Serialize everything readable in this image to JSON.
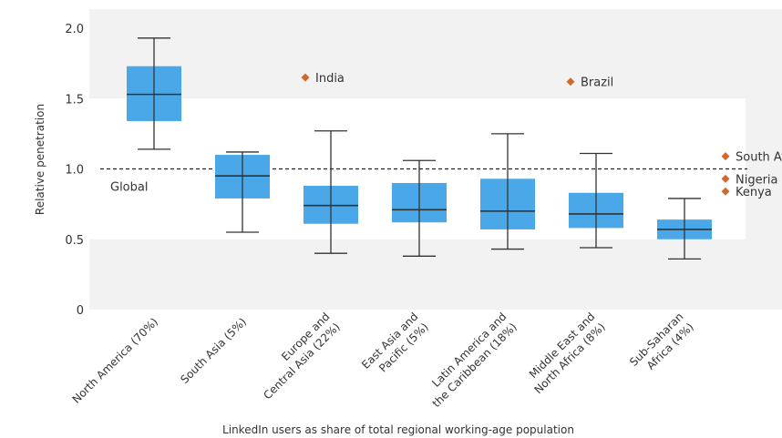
{
  "chart_data": {
    "type": "box",
    "xlabel": "LinkedIn users as share of total regional working-age population",
    "ylabel": "Relative penetration",
    "ylim": [
      0,
      2.0
    ],
    "yticks": [
      "0",
      "0.5",
      "1.0",
      "1.5",
      "2.0"
    ],
    "y_tick_values": [
      0,
      0.5,
      1.0,
      1.5,
      2.0
    ],
    "categories": [
      [
        "North America (70%)"
      ],
      [
        "South Asia (5%)"
      ],
      [
        "Europe and",
        "Central Asia (22%)"
      ],
      [
        "East Asia and",
        "Pacific (5%)"
      ],
      [
        "Latin America and",
        "the Caribbean (18%)"
      ],
      [
        "Middle East and",
        "North Africa (8%)"
      ],
      [
        "Sub-Saharan",
        "Africa (4%)"
      ]
    ],
    "boxes": [
      {
        "min": 1.14,
        "q1": 1.34,
        "median": 1.53,
        "q3": 1.73,
        "max": 1.93
      },
      {
        "min": 0.55,
        "q1": 0.79,
        "median": 0.95,
        "q3": 1.1,
        "max": 1.12
      },
      {
        "min": 0.4,
        "q1": 0.61,
        "median": 0.74,
        "q3": 0.88,
        "max": 1.27
      },
      {
        "min": 0.38,
        "q1": 0.62,
        "median": 0.71,
        "q3": 0.9,
        "max": 1.06
      },
      {
        "min": 0.43,
        "q1": 0.57,
        "median": 0.7,
        "q3": 0.93,
        "max": 1.25
      },
      {
        "min": 0.44,
        "q1": 0.58,
        "median": 0.68,
        "q3": 0.83,
        "max": 1.11
      },
      {
        "min": 0.36,
        "q1": 0.5,
        "median": 0.57,
        "q3": 0.64,
        "max": 0.79
      }
    ],
    "reference_line": {
      "value": 1.0,
      "label": "Global"
    },
    "outliers": [
      {
        "label": "India",
        "category": 1,
        "value": 1.65
      },
      {
        "label": "Brazil",
        "category": 4,
        "value": 1.62
      },
      {
        "label": "South Africa",
        "category": 6,
        "value": 1.09
      },
      {
        "label": "Nigeria",
        "category": 6,
        "value": 0.93
      },
      {
        "label": "Kenya",
        "category": 6,
        "value": 0.84
      }
    ],
    "shaded_band": [
      0.5,
      1.5
    ],
    "colors": {
      "box": "#4aa8e8",
      "outlier": "#d06a2a",
      "plot_bg": "#f2f2f2",
      "band": "#ffffff",
      "line": "#333333"
    }
  }
}
